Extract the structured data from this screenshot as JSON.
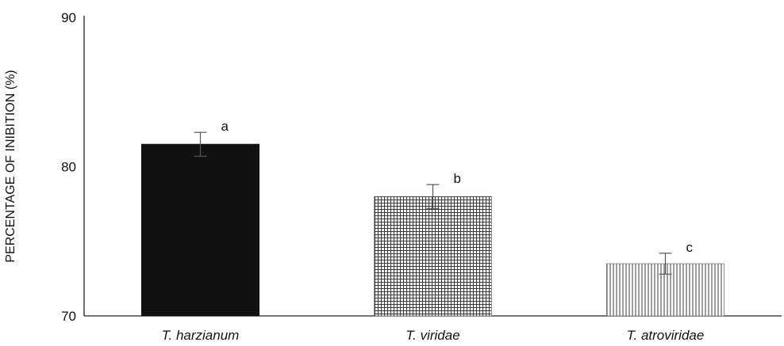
{
  "chart_data": {
    "type": "bar",
    "title": "",
    "xlabel": "",
    "ylabel": "PERCENTAGE OF INIBITION (%)",
    "ylim": [
      70,
      90
    ],
    "yticks": [
      70,
      80,
      90
    ],
    "grid": false,
    "categories": [
      "T. harzianum",
      "T. viridae",
      "T. atroviridae"
    ],
    "values": [
      81.5,
      78.0,
      73.5
    ],
    "errors": [
      0.8,
      0.8,
      0.7
    ],
    "significance": [
      "a",
      "b",
      "c"
    ],
    "bar_styles": [
      {
        "fill": "solid",
        "color": "#111111"
      },
      {
        "fill": "grid",
        "color": "#3a3a3a"
      },
      {
        "fill": "vertical-stripes",
        "color": "#6a6a6a"
      }
    ]
  }
}
